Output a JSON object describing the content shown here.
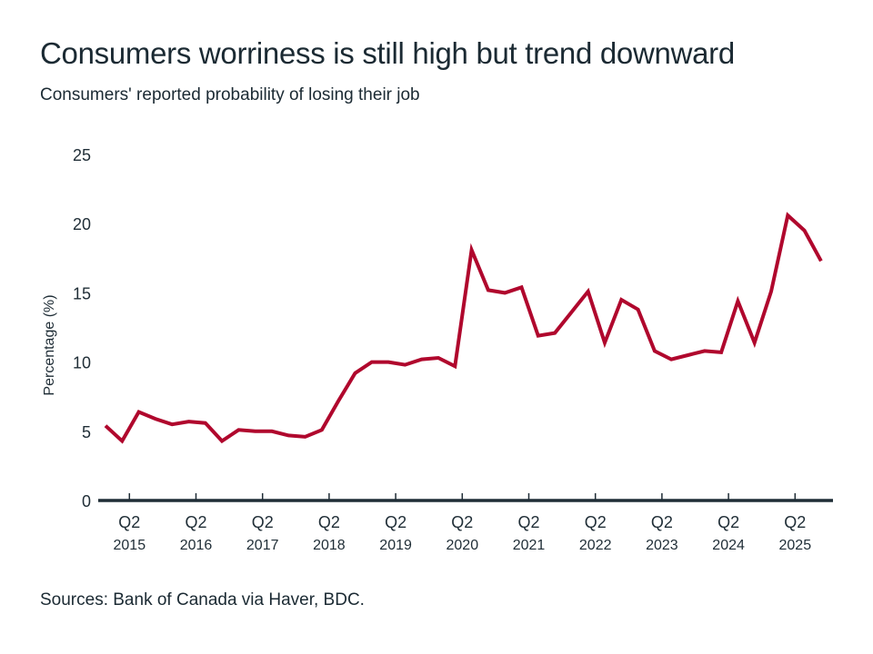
{
  "header": {
    "title": "Consumers worriness is still high but trend downward",
    "subtitle": "Consumers' reported probability of losing their job"
  },
  "footer": {
    "source": "Sources: Bank of Canada via Haver, BDC."
  },
  "colors": {
    "line": "#b0072d",
    "axis": "#1f2d36",
    "text": "#1b2a33"
  },
  "chart_data": {
    "type": "line",
    "title": "Consumers worriness is still high but trend downward",
    "subtitle": "Consumers' reported probability of losing their job",
    "xlabel": "",
    "ylabel": "Percentage (%)",
    "ylim": [
      0,
      25
    ],
    "yticks": [
      0,
      5,
      10,
      15,
      20,
      25
    ],
    "grid": false,
    "legend": "none",
    "x": [
      "Q1 2015",
      "Q2 2015",
      "Q3 2015",
      "Q4 2015",
      "Q1 2016",
      "Q2 2016",
      "Q3 2016",
      "Q4 2016",
      "Q1 2017",
      "Q2 2017",
      "Q3 2017",
      "Q4 2017",
      "Q1 2018",
      "Q2 2018",
      "Q3 2018",
      "Q4 2018",
      "Q1 2019",
      "Q2 2019",
      "Q3 2019",
      "Q4 2019",
      "Q1 2020",
      "Q2 2020",
      "Q3 2020",
      "Q4 2020",
      "Q1 2021",
      "Q2 2021",
      "Q3 2021",
      "Q4 2021",
      "Q1 2022",
      "Q2 2022",
      "Q3 2022",
      "Q4 2022",
      "Q1 2023",
      "Q2 2023",
      "Q3 2023",
      "Q4 2023",
      "Q1 2024",
      "Q2 2024",
      "Q3 2024",
      "Q4 2024",
      "Q1 2025",
      "Q2 2025",
      "Q3 2025",
      "Q4 2025"
    ],
    "xticks": [
      {
        "quarter": "Q2",
        "year": "2015",
        "index": 1
      },
      {
        "quarter": "Q2",
        "year": "2016",
        "index": 5
      },
      {
        "quarter": "Q2",
        "year": "2017",
        "index": 9
      },
      {
        "quarter": "Q2",
        "year": "2018",
        "index": 13
      },
      {
        "quarter": "Q2",
        "year": "2019",
        "index": 17
      },
      {
        "quarter": "Q2",
        "year": "2020",
        "index": 21
      },
      {
        "quarter": "Q2",
        "year": "2021",
        "index": 25
      },
      {
        "quarter": "Q2",
        "year": "2022",
        "index": 29
      },
      {
        "quarter": "Q2",
        "year": "2023",
        "index": 33
      },
      {
        "quarter": "Q2",
        "year": "2024",
        "index": 37
      },
      {
        "quarter": "Q2",
        "year": "2025",
        "index": 41
      }
    ],
    "series": [
      {
        "name": "Reported probability of losing job",
        "values": [
          5.4,
          4.3,
          6.4,
          5.9,
          5.5,
          5.7,
          5.6,
          4.3,
          5.1,
          5.0,
          5.0,
          4.7,
          4.6,
          5.1,
          7.2,
          9.2,
          10.0,
          10.0,
          9.8,
          10.2,
          10.3,
          9.7,
          18.1,
          15.2,
          15.0,
          15.4,
          11.9,
          12.1,
          13.6,
          15.1,
          11.4,
          14.5,
          13.8,
          10.8,
          10.2,
          10.5,
          10.8,
          10.7,
          14.4,
          11.4,
          15.1,
          20.6,
          19.5,
          17.3
        ]
      }
    ]
  }
}
